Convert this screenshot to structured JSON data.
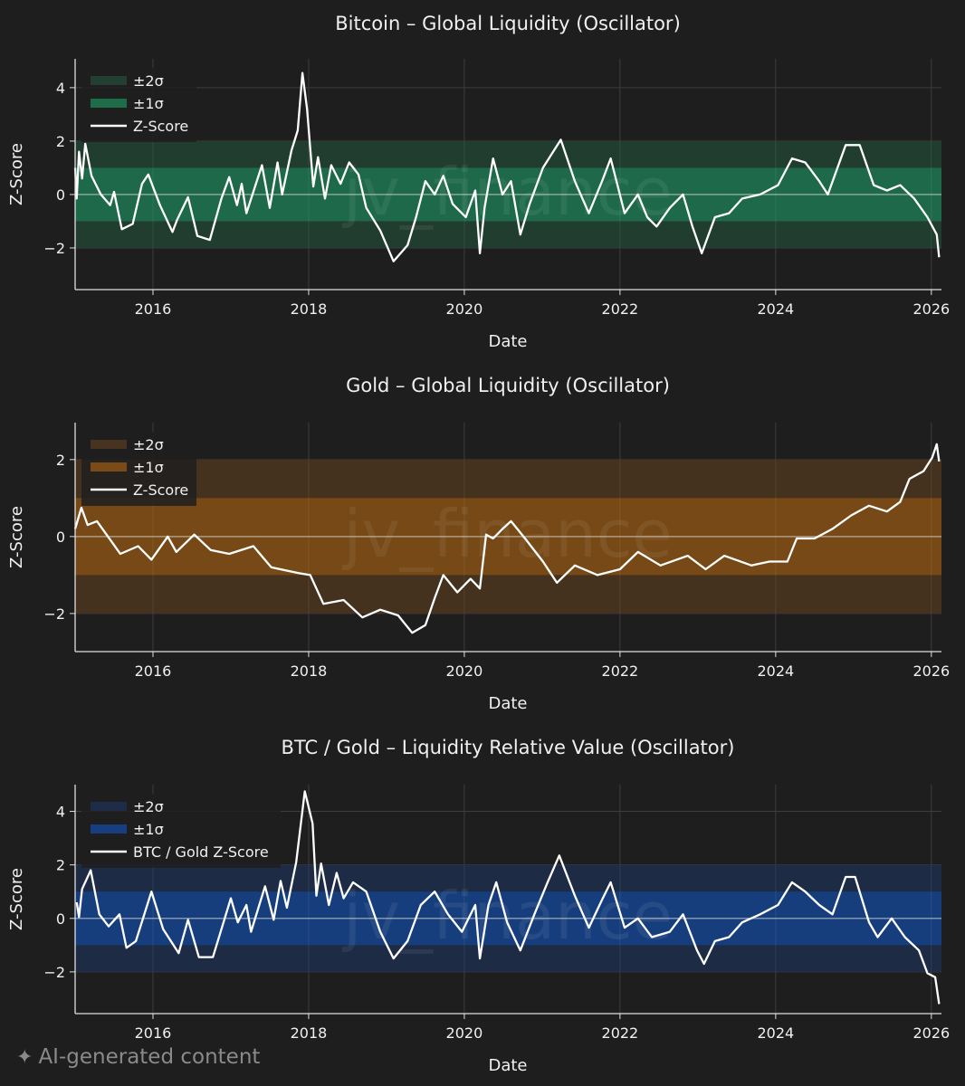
{
  "watermark": "jv_finance",
  "footer": {
    "icon": "sparkle-icon",
    "label": "AI-generated content"
  },
  "chart_data": [
    {
      "type": "line",
      "title": "Bitcoin – Global Liquidity (Oscillator)",
      "xlabel": "Date",
      "ylabel": "Z-Score",
      "xlim": [
        2015.0,
        2026.13
      ],
      "ylim": [
        -3.56,
        5.08
      ],
      "xticks": [
        2016,
        2018,
        2020,
        2022,
        2024,
        2026
      ],
      "yticks": [
        -2,
        0,
        2,
        4
      ],
      "ytick_labels": [
        "−2",
        "0",
        "2",
        "4"
      ],
      "grid": true,
      "legend_position": "top-left",
      "legend": [
        "±2σ",
        "±1σ",
        "Z-Score"
      ],
      "colors": {
        "band2": "#223f31",
        "band1": "#1f6c4b",
        "line": "#ffffff"
      },
      "series": [
        {
          "name": "Z-Score",
          "points": [
            [
              2015.0,
              1.0
            ],
            [
              2015.02,
              -0.15
            ],
            [
              2015.05,
              1.6
            ],
            [
              2015.09,
              0.6
            ],
            [
              2015.13,
              1.9
            ],
            [
              2015.21,
              0.7
            ],
            [
              2015.33,
              0.0
            ],
            [
              2015.45,
              -0.4
            ],
            [
              2015.5,
              0.1
            ],
            [
              2015.6,
              -1.3
            ],
            [
              2015.74,
              -1.1
            ],
            [
              2015.86,
              0.4
            ],
            [
              2015.94,
              0.75
            ],
            [
              2016.09,
              -0.4
            ],
            [
              2016.25,
              -1.4
            ],
            [
              2016.31,
              -0.95
            ],
            [
              2016.45,
              -0.1
            ],
            [
              2016.57,
              -1.55
            ],
            [
              2016.73,
              -1.7
            ],
            [
              2016.88,
              -0.15
            ],
            [
              2016.98,
              0.65
            ],
            [
              2017.08,
              -0.4
            ],
            [
              2017.14,
              0.4
            ],
            [
              2017.2,
              -0.7
            ],
            [
              2017.4,
              1.1
            ],
            [
              2017.5,
              -0.5
            ],
            [
              2017.6,
              1.2
            ],
            [
              2017.66,
              0.0
            ],
            [
              2017.78,
              1.65
            ],
            [
              2017.86,
              2.4
            ],
            [
              2017.92,
              4.55
            ],
            [
              2017.98,
              3.2
            ],
            [
              2018.06,
              0.3
            ],
            [
              2018.12,
              1.4
            ],
            [
              2018.21,
              -0.15
            ],
            [
              2018.29,
              1.1
            ],
            [
              2018.41,
              0.4
            ],
            [
              2018.52,
              1.2
            ],
            [
              2018.64,
              0.75
            ],
            [
              2018.74,
              -0.5
            ],
            [
              2018.92,
              -1.35
            ],
            [
              2019.09,
              -2.5
            ],
            [
              2019.27,
              -1.9
            ],
            [
              2019.38,
              -0.85
            ],
            [
              2019.5,
              0.5
            ],
            [
              2019.62,
              0.0
            ],
            [
              2019.73,
              0.7
            ],
            [
              2019.85,
              -0.35
            ],
            [
              2020.02,
              -0.85
            ],
            [
              2020.14,
              0.15
            ],
            [
              2020.2,
              -2.2
            ],
            [
              2020.26,
              -0.5
            ],
            [
              2020.37,
              1.35
            ],
            [
              2020.49,
              0.0
            ],
            [
              2020.6,
              0.5
            ],
            [
              2020.72,
              -1.5
            ],
            [
              2020.84,
              -0.35
            ],
            [
              2021.01,
              1.0
            ],
            [
              2021.24,
              2.05
            ],
            [
              2021.42,
              0.5
            ],
            [
              2021.6,
              -0.7
            ],
            [
              2021.77,
              0.5
            ],
            [
              2021.88,
              1.35
            ],
            [
              2022.06,
              -0.7
            ],
            [
              2022.23,
              0.0
            ],
            [
              2022.35,
              -0.85
            ],
            [
              2022.47,
              -1.2
            ],
            [
              2022.64,
              -0.5
            ],
            [
              2022.81,
              0.0
            ],
            [
              2022.93,
              -1.2
            ],
            [
              2023.05,
              -2.2
            ],
            [
              2023.22,
              -0.85
            ],
            [
              2023.4,
              -0.7
            ],
            [
              2023.57,
              -0.15
            ],
            [
              2023.8,
              0.0
            ],
            [
              2024.03,
              0.35
            ],
            [
              2024.21,
              1.35
            ],
            [
              2024.38,
              1.2
            ],
            [
              2024.56,
              0.5
            ],
            [
              2024.67,
              0.0
            ],
            [
              2024.9,
              1.85
            ],
            [
              2025.08,
              1.85
            ],
            [
              2025.26,
              0.35
            ],
            [
              2025.43,
              0.15
            ],
            [
              2025.6,
              0.35
            ],
            [
              2025.78,
              -0.15
            ],
            [
              2025.95,
              -0.85
            ],
            [
              2026.07,
              -1.5
            ],
            [
              2026.1,
              -2.35
            ]
          ]
        }
      ]
    },
    {
      "type": "line",
      "title": "Gold – Global Liquidity (Oscillator)",
      "xlabel": "Date",
      "ylabel": "Z-Score",
      "xlim": [
        2015.0,
        2026.13
      ],
      "ylim": [
        -2.99,
        2.96
      ],
      "xticks": [
        2016,
        2018,
        2020,
        2022,
        2024,
        2026
      ],
      "yticks": [
        -2,
        0,
        2
      ],
      "ytick_labels": [
        "−2",
        "0",
        "2"
      ],
      "grid": true,
      "legend_position": "top-left",
      "legend": [
        "±2σ",
        "±1σ",
        "Z-Score"
      ],
      "colors": {
        "band2": "#47331f",
        "band1": "#7a4b16",
        "line": "#ffffff"
      },
      "series": [
        {
          "name": "Z-Score",
          "points": [
            [
              2015.0,
              0.2
            ],
            [
              2015.08,
              0.75
            ],
            [
              2015.16,
              0.3
            ],
            [
              2015.28,
              0.4
            ],
            [
              2015.58,
              -0.45
            ],
            [
              2015.81,
              -0.25
            ],
            [
              2015.98,
              -0.6
            ],
            [
              2016.19,
              0.0
            ],
            [
              2016.3,
              -0.4
            ],
            [
              2016.53,
              0.05
            ],
            [
              2016.74,
              -0.35
            ],
            [
              2016.98,
              -0.45
            ],
            [
              2017.29,
              -0.25
            ],
            [
              2017.52,
              -0.8
            ],
            [
              2017.87,
              -0.95
            ],
            [
              2018.02,
              -1.0
            ],
            [
              2018.19,
              -1.75
            ],
            [
              2018.45,
              -1.65
            ],
            [
              2018.69,
              -2.1
            ],
            [
              2018.92,
              -1.9
            ],
            [
              2019.15,
              -2.05
            ],
            [
              2019.33,
              -2.5
            ],
            [
              2019.5,
              -2.3
            ],
            [
              2019.62,
              -1.6
            ],
            [
              2019.73,
              -1.0
            ],
            [
              2019.91,
              -1.45
            ],
            [
              2020.08,
              -1.1
            ],
            [
              2020.2,
              -1.35
            ],
            [
              2020.28,
              0.05
            ],
            [
              2020.37,
              -0.05
            ],
            [
              2020.49,
              0.2
            ],
            [
              2020.6,
              0.4
            ],
            [
              2020.78,
              -0.05
            ],
            [
              2021.01,
              -0.65
            ],
            [
              2021.19,
              -1.2
            ],
            [
              2021.42,
              -0.75
            ],
            [
              2021.71,
              -1.0
            ],
            [
              2022.0,
              -0.85
            ],
            [
              2022.23,
              -0.4
            ],
            [
              2022.52,
              -0.75
            ],
            [
              2022.87,
              -0.5
            ],
            [
              2023.1,
              -0.85
            ],
            [
              2023.34,
              -0.5
            ],
            [
              2023.69,
              -0.75
            ],
            [
              2023.92,
              -0.65
            ],
            [
              2024.15,
              -0.65
            ],
            [
              2024.27,
              -0.05
            ],
            [
              2024.5,
              -0.05
            ],
            [
              2024.73,
              0.2
            ],
            [
              2024.97,
              0.55
            ],
            [
              2025.2,
              0.8
            ],
            [
              2025.43,
              0.65
            ],
            [
              2025.6,
              0.9
            ],
            [
              2025.72,
              1.5
            ],
            [
              2025.9,
              1.7
            ],
            [
              2026.01,
              2.05
            ],
            [
              2026.07,
              2.4
            ],
            [
              2026.1,
              1.95
            ]
          ]
        }
      ]
    },
    {
      "type": "line",
      "title": "BTC / Gold – Liquidity Relative Value (Oscillator)",
      "xlabel": "Date",
      "ylabel": "Z-Score",
      "xlim": [
        2015.0,
        2026.13
      ],
      "ylim": [
        -3.56,
        5.0
      ],
      "xticks": [
        2016,
        2018,
        2020,
        2022,
        2024,
        2026
      ],
      "yticks": [
        -2,
        0,
        2,
        4
      ],
      "ytick_labels": [
        "−2",
        "0",
        "2",
        "4"
      ],
      "grid": true,
      "legend_position": "top-left",
      "legend": [
        "±2σ",
        "±1σ",
        "BTC / Gold Z-Score"
      ],
      "colors": {
        "band2": "#1e2c48",
        "band1": "#173f7f",
        "line": "#ffffff"
      },
      "series": [
        {
          "name": "BTC / Gold Z-Score",
          "points": [
            [
              2015.02,
              0.6
            ],
            [
              2015.05,
              0.05
            ],
            [
              2015.09,
              1.1
            ],
            [
              2015.2,
              1.8
            ],
            [
              2015.31,
              0.15
            ],
            [
              2015.43,
              -0.3
            ],
            [
              2015.57,
              0.15
            ],
            [
              2015.66,
              -1.1
            ],
            [
              2015.78,
              -0.85
            ],
            [
              2015.98,
              1.0
            ],
            [
              2016.13,
              -0.4
            ],
            [
              2016.33,
              -1.3
            ],
            [
              2016.45,
              -0.05
            ],
            [
              2016.59,
              -1.45
            ],
            [
              2016.77,
              -1.45
            ],
            [
              2017.0,
              0.75
            ],
            [
              2017.09,
              -0.15
            ],
            [
              2017.2,
              0.5
            ],
            [
              2017.26,
              -0.5
            ],
            [
              2017.44,
              1.2
            ],
            [
              2017.55,
              -0.05
            ],
            [
              2017.64,
              1.4
            ],
            [
              2017.72,
              0.4
            ],
            [
              2017.84,
              2.1
            ],
            [
              2017.95,
              4.75
            ],
            [
              2018.05,
              3.55
            ],
            [
              2018.1,
              0.85
            ],
            [
              2018.16,
              2.05
            ],
            [
              2018.26,
              0.5
            ],
            [
              2018.36,
              1.7
            ],
            [
              2018.45,
              0.75
            ],
            [
              2018.57,
              1.35
            ],
            [
              2018.74,
              1.0
            ],
            [
              2018.92,
              -0.5
            ],
            [
              2019.09,
              -1.5
            ],
            [
              2019.27,
              -0.85
            ],
            [
              2019.44,
              0.5
            ],
            [
              2019.62,
              1.0
            ],
            [
              2019.79,
              0.15
            ],
            [
              2019.97,
              -0.5
            ],
            [
              2020.14,
              0.5
            ],
            [
              2020.2,
              -1.5
            ],
            [
              2020.31,
              0.5
            ],
            [
              2020.41,
              1.35
            ],
            [
              2020.55,
              -0.15
            ],
            [
              2020.72,
              -1.2
            ],
            [
              2020.9,
              0.15
            ],
            [
              2021.07,
              1.35
            ],
            [
              2021.22,
              2.35
            ],
            [
              2021.42,
              0.85
            ],
            [
              2021.6,
              -0.35
            ],
            [
              2021.77,
              0.7
            ],
            [
              2021.88,
              1.35
            ],
            [
              2022.06,
              -0.35
            ],
            [
              2022.23,
              0.0
            ],
            [
              2022.41,
              -0.7
            ],
            [
              2022.64,
              -0.5
            ],
            [
              2022.81,
              0.15
            ],
            [
              2022.99,
              -1.2
            ],
            [
              2023.08,
              -1.7
            ],
            [
              2023.22,
              -0.85
            ],
            [
              2023.4,
              -0.7
            ],
            [
              2023.57,
              -0.15
            ],
            [
              2023.8,
              0.15
            ],
            [
              2024.03,
              0.5
            ],
            [
              2024.21,
              1.35
            ],
            [
              2024.38,
              1.0
            ],
            [
              2024.56,
              0.5
            ],
            [
              2024.73,
              0.15
            ],
            [
              2024.9,
              1.55
            ],
            [
              2025.02,
              1.55
            ],
            [
              2025.2,
              -0.15
            ],
            [
              2025.31,
              -0.7
            ],
            [
              2025.49,
              0.0
            ],
            [
              2025.66,
              -0.7
            ],
            [
              2025.84,
              -1.2
            ],
            [
              2025.95,
              -2.05
            ],
            [
              2026.05,
              -2.2
            ],
            [
              2026.1,
              -3.2
            ]
          ]
        }
      ]
    }
  ]
}
